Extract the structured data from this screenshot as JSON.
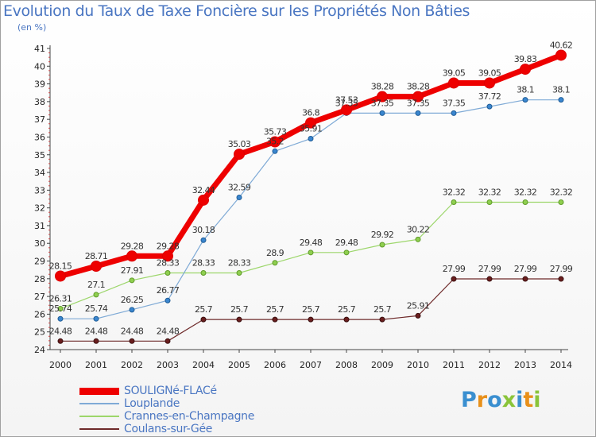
{
  "title": "Evolution du Taux de Taxe Foncière sur les Propriétés Non Bâties",
  "subtitle": "(en %)",
  "logo": {
    "text": "Proxiti",
    "letter_colors": [
      "#3a8fd0",
      "#e8901a",
      "#3a8fd0",
      "#8ac43a",
      "#3a8fd0",
      "#e8901a",
      "#8ac43a"
    ]
  },
  "chart_data": {
    "type": "line",
    "title": "Evolution du Taux de Taxe Foncière sur les Propriétés Non Bâties",
    "ylabel": "(en %)",
    "xlabel": "",
    "ylim": [
      24,
      41
    ],
    "yticks": [
      24,
      25,
      26,
      27,
      28,
      29,
      30,
      31,
      32,
      33,
      34,
      35,
      36,
      37,
      38,
      39,
      40,
      41
    ],
    "grid": false,
    "legend_position": "bottom-left",
    "x": [
      "2000",
      "2001",
      "2002",
      "2003",
      "2004",
      "2005",
      "2006",
      "2007",
      "2008",
      "2009",
      "2010",
      "2011",
      "2012",
      "2013",
      "2014"
    ],
    "series": [
      {
        "name": "SOULIGNé-FLACé",
        "color": "#ee0000",
        "values": [
          28.15,
          28.71,
          29.28,
          29.28,
          32.44,
          35.03,
          35.73,
          36.8,
          37.53,
          38.28,
          38.28,
          39.05,
          39.05,
          39.83,
          40.62
        ],
        "labels": [
          "28.15",
          "28.71",
          "29.28",
          "29.28",
          "32.44",
          "35.03",
          "35.73",
          "36.8",
          "37.53",
          "38.28",
          "38.28",
          "39.05",
          "39.05",
          "39.83",
          "40.62"
        ]
      },
      {
        "name": "Louplande",
        "color": "#7faad6",
        "values": [
          25.74,
          25.74,
          26.25,
          26.77,
          30.18,
          32.59,
          35.2,
          35.91,
          37.35,
          37.35,
          37.35,
          37.35,
          37.72,
          38.1,
          38.1
        ],
        "labels": [
          "25.74",
          "25.74",
          "26.25",
          "26.77",
          "30.18",
          "32.59",
          "35.2",
          "35.91",
          "37.35",
          "37.35",
          "37.35",
          "37.35",
          "37.72",
          "38.1",
          "38.1"
        ]
      },
      {
        "name": "Crannes-en-Champagne",
        "color": "#9cd66a",
        "values": [
          26.31,
          27.1,
          27.91,
          28.33,
          28.33,
          28.33,
          28.9,
          29.48,
          29.48,
          29.92,
          30.22,
          32.32,
          32.32,
          32.32,
          32.32
        ],
        "labels": [
          "26.31",
          "27.1",
          "27.91",
          "28.33",
          "28.33",
          "28.33",
          "28.9",
          "29.48",
          "29.48",
          "29.92",
          "30.22",
          "32.32",
          "32.32",
          "32.32",
          "32.32"
        ]
      },
      {
        "name": "Coulans-sur-Gée",
        "color": "#6e2a2a",
        "values": [
          24.48,
          24.48,
          24.48,
          24.48,
          25.7,
          25.7,
          25.7,
          25.7,
          25.7,
          25.7,
          25.91,
          27.99,
          27.99,
          27.99,
          27.99
        ],
        "labels": [
          "24.48",
          "24.48",
          "24.48",
          "24.48",
          "25.7",
          "25.7",
          "25.7",
          "25.7",
          "25.7",
          "25.7",
          "25.91",
          "27.99",
          "27.99",
          "27.99",
          "27.99"
        ]
      }
    ]
  }
}
